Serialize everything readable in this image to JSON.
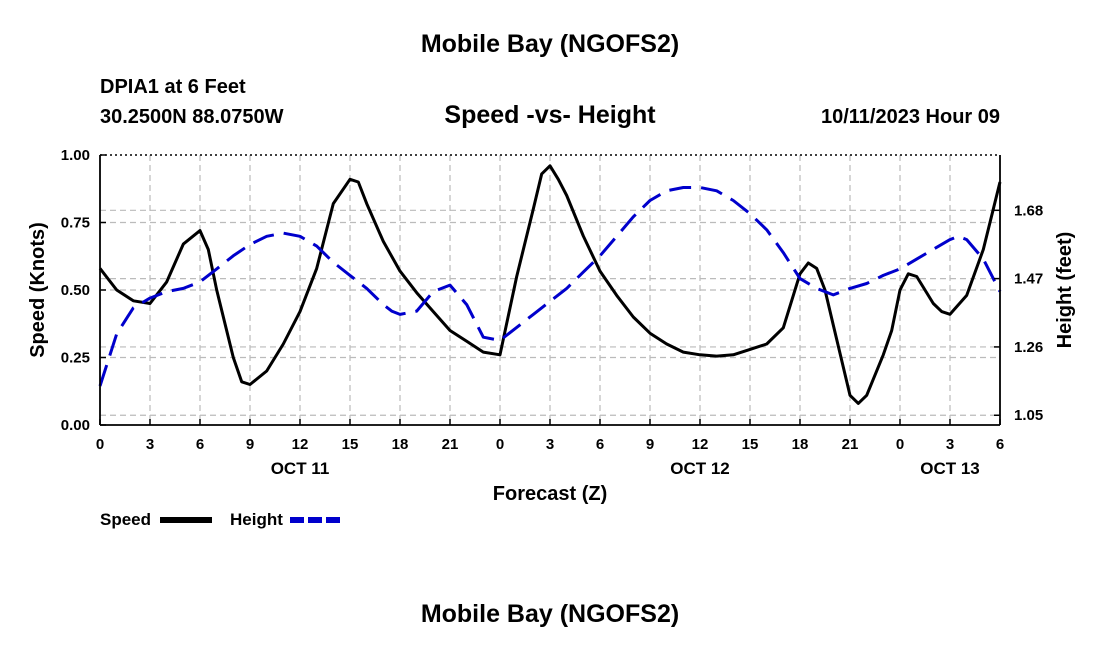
{
  "header": {
    "title": "Mobile Bay (NGOFS2)",
    "station": "DPIA1 at 6 Feet",
    "coords": "30.2500N  88.0750W",
    "subtitle": "Speed -vs- Height",
    "datetime": "10/11/2023 Hour 09",
    "footer_title": "Mobile Bay (NGOFS2)"
  },
  "colors": {
    "speed": "#000000",
    "height": "#0000cc",
    "grid": "#bbbbbb"
  },
  "chart_data": {
    "type": "line",
    "title": "Speed -vs- Height",
    "xlabel": "Forecast (Z)",
    "ylabel": "Speed (Knots)",
    "y2label": "Height (feet)",
    "xlim": [
      0,
      54
    ],
    "ylim": [
      0,
      1.0
    ],
    "y2lim": [
      1.02,
      1.85
    ],
    "x_ticks": [
      0,
      3,
      6,
      9,
      12,
      15,
      18,
      21,
      24,
      27,
      30,
      33,
      36,
      39,
      42,
      45,
      48,
      51,
      54
    ],
    "x_tick_labels": [
      "0",
      "3",
      "6",
      "9",
      "12",
      "15",
      "18",
      "21",
      "0",
      "3",
      "6",
      "9",
      "12",
      "15",
      "18",
      "21",
      "0",
      "3",
      "6"
    ],
    "date_labels": [
      {
        "x": 12,
        "label": "OCT 11"
      },
      {
        "x": 36,
        "label": "OCT 12"
      },
      {
        "x": 51,
        "label": "OCT 13"
      }
    ],
    "y_ticks": [
      0,
      0.25,
      0.5,
      0.75,
      1.0
    ],
    "y_tick_labels": [
      "0.00",
      "0.25",
      "0.50",
      "0.75",
      "1.00"
    ],
    "y2_ticks": [
      1.05,
      1.26,
      1.47,
      1.68
    ],
    "y2_tick_labels": [
      "1.05",
      "1.26",
      "1.47",
      "1.68"
    ],
    "legend": {
      "placement": "bottom-left",
      "entries": [
        "Speed",
        "Height"
      ]
    },
    "series": [
      {
        "name": "Speed",
        "axis": "left",
        "style": "solid",
        "x": [
          0,
          1,
          2,
          3,
          4,
          5,
          6,
          6.5,
          7,
          8,
          8.5,
          9,
          10,
          11,
          12,
          13,
          14,
          15,
          15.5,
          16,
          17,
          18,
          19,
          20,
          21,
          22,
          23,
          24,
          25,
          26,
          26.5,
          27,
          27.5,
          28,
          29,
          30,
          31,
          32,
          33,
          34,
          35,
          36,
          37,
          38,
          39,
          40,
          41,
          42,
          42.5,
          43,
          43.5,
          44,
          45,
          45.5,
          46,
          47,
          47.5,
          48,
          48.5,
          49,
          50,
          50.5,
          51,
          52,
          53,
          54
        ],
        "values": [
          0.58,
          0.5,
          0.46,
          0.45,
          0.53,
          0.67,
          0.72,
          0.65,
          0.5,
          0.25,
          0.16,
          0.15,
          0.2,
          0.3,
          0.42,
          0.58,
          0.82,
          0.91,
          0.9,
          0.82,
          0.68,
          0.57,
          0.49,
          0.42,
          0.35,
          0.31,
          0.27,
          0.26,
          0.55,
          0.8,
          0.93,
          0.96,
          0.91,
          0.85,
          0.7,
          0.57,
          0.48,
          0.4,
          0.34,
          0.3,
          0.27,
          0.26,
          0.255,
          0.26,
          0.28,
          0.3,
          0.36,
          0.56,
          0.6,
          0.58,
          0.5,
          0.37,
          0.11,
          0.08,
          0.11,
          0.26,
          0.35,
          0.5,
          0.56,
          0.55,
          0.45,
          0.42,
          0.41,
          0.48,
          0.65,
          0.9
        ]
      },
      {
        "name": "Height",
        "axis": "right",
        "style": "dashed",
        "x": [
          0,
          1,
          2,
          3,
          4,
          5,
          6,
          7,
          8,
          9,
          10,
          11,
          12,
          13,
          14,
          15,
          16,
          17,
          17.5,
          18,
          19,
          20,
          21,
          22,
          23,
          24,
          25,
          26,
          27,
          28,
          29,
          30,
          31,
          32,
          33,
          34,
          35,
          36,
          37,
          38,
          39,
          40,
          41,
          42,
          43,
          44,
          45,
          46,
          47,
          48,
          49,
          50,
          51,
          51.5,
          52,
          53,
          54
        ],
        "values": [
          1.14,
          1.3,
          1.38,
          1.41,
          1.43,
          1.44,
          1.46,
          1.5,
          1.54,
          1.575,
          1.6,
          1.61,
          1.6,
          1.57,
          1.52,
          1.48,
          1.44,
          1.39,
          1.37,
          1.36,
          1.37,
          1.43,
          1.45,
          1.39,
          1.29,
          1.28,
          1.32,
          1.36,
          1.4,
          1.44,
          1.49,
          1.54,
          1.6,
          1.66,
          1.71,
          1.74,
          1.75,
          1.75,
          1.74,
          1.71,
          1.67,
          1.62,
          1.55,
          1.47,
          1.44,
          1.42,
          1.44,
          1.455,
          1.48,
          1.5,
          1.53,
          1.56,
          1.59,
          1.6,
          1.59,
          1.53,
          1.43
        ]
      }
    ]
  }
}
